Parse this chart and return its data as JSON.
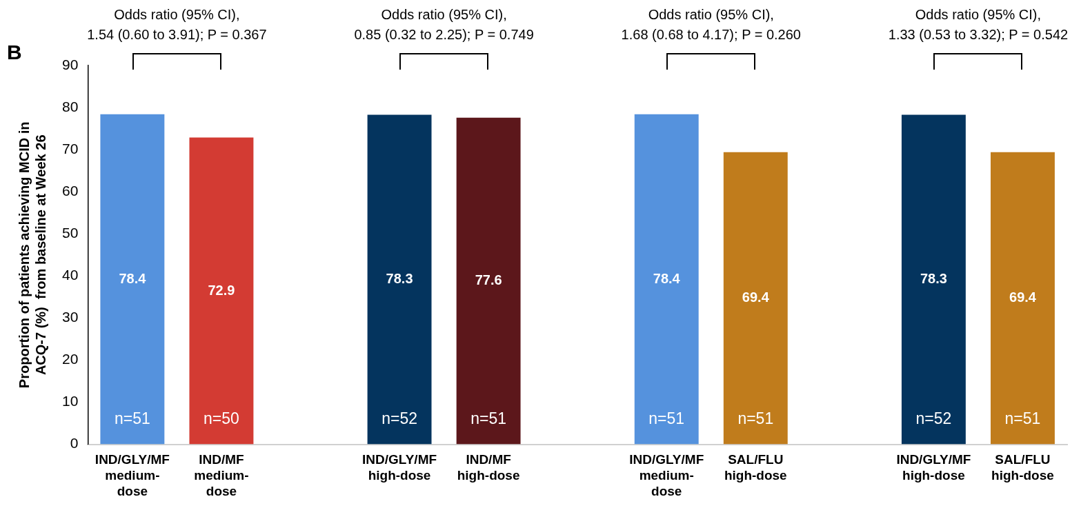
{
  "chart_data": {
    "type": "bar",
    "title": "B",
    "ylabel": "Proportion of patients achieving MCID in\nACQ-7 (%)  from baseline at Week 26",
    "categories": [
      "IND/GLY/MF\nmedium-\ndose",
      "IND/MF\nmedium-\ndose",
      null,
      "IND/GLY/MF\nhigh-dose",
      "IND/MF\nhigh-dose",
      null,
      "IND/GLY/MF\nmedium-\ndose",
      "SAL/FLU\nhigh-dose",
      null,
      "IND/GLY/MF\nhigh-dose",
      "SAL/FLU\nhigh-dose"
    ],
    "values": [
      78.4,
      72.9,
      null,
      78.3,
      77.6,
      null,
      78.4,
      69.4,
      null,
      78.3,
      69.4
    ],
    "colors": [
      "#5592dd",
      "#d33b33",
      "#ffffff",
      "#04345e",
      "#5c171b",
      "#ffffff",
      "#5592dd",
      "#c07c1c",
      "#ffffff",
      "#04345e",
      "#c07c1c"
    ],
    "ylim": [
      0,
      90
    ],
    "yticks": [
      0,
      10,
      20,
      30,
      40,
      50,
      60,
      70,
      80,
      90
    ],
    "grid": false,
    "legend": false,
    "data_labels": true,
    "annotations": [
      "Odds ratio (95% CI),\n1.54 (0.60 to 3.91); P = 0.367",
      "Odds ratio (95% CI),\n0.85 (0.32 to 2.25); P = 0.749",
      "Odds ratio (95% CI),\n1.68 (0.68 to 4.17); P = 0.260",
      "Odds ratio (95% CI),\n1.33 (0.53 to 3.32); P = 0.542",
      "n=51",
      "n=50",
      "n=52",
      "n=51",
      "n=51",
      "n=51",
      "n=52",
      "n=51"
    ]
  }
}
